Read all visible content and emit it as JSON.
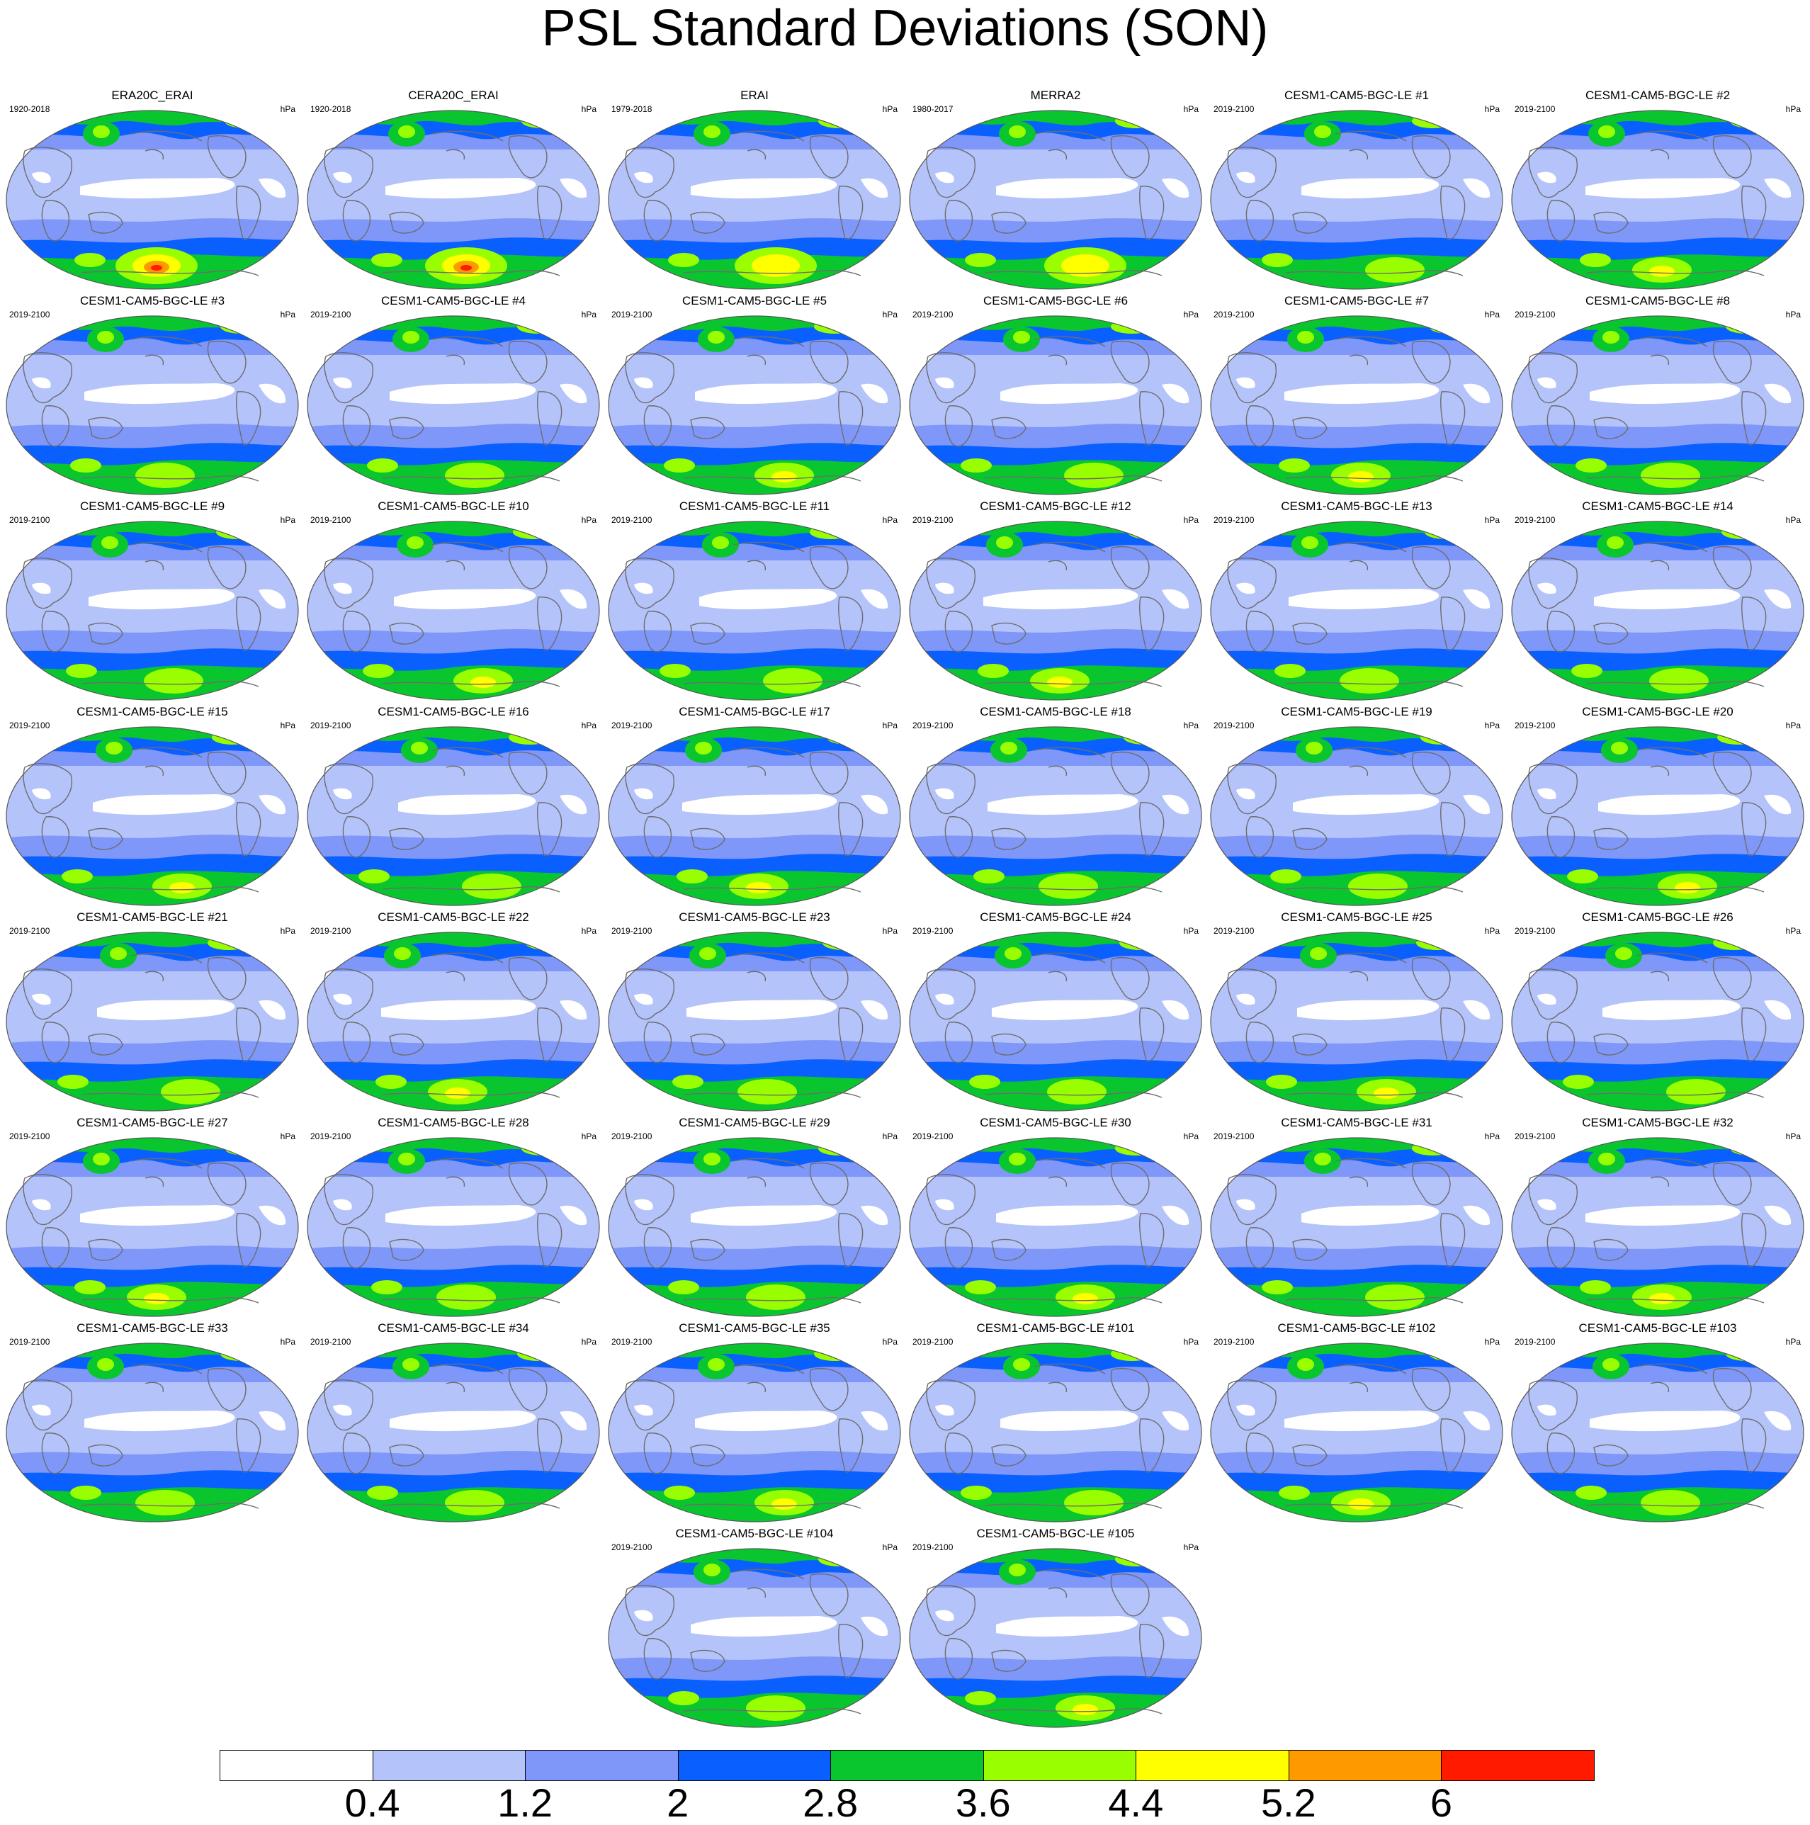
{
  "title": "PSL Standard Deviations (SON)",
  "panels": [
    {
      "title": "ERA20C_ERAI",
      "years": "1920-2018",
      "units": "hPa"
    },
    {
      "title": "CERA20C_ERAI",
      "years": "1920-2018",
      "units": "hPa"
    },
    {
      "title": "ERAI",
      "years": "1979-2018",
      "units": "hPa"
    },
    {
      "title": "MERRA2",
      "years": "1980-2017",
      "units": "hPa"
    },
    {
      "title": "CESM1-CAM5-BGC-LE #1",
      "years": "2019-2100",
      "units": "hPa"
    },
    {
      "title": "CESM1-CAM5-BGC-LE #2",
      "years": "2019-2100",
      "units": "hPa"
    },
    {
      "title": "CESM1-CAM5-BGC-LE #3",
      "years": "2019-2100",
      "units": "hPa"
    },
    {
      "title": "CESM1-CAM5-BGC-LE #4",
      "years": "2019-2100",
      "units": "hPa"
    },
    {
      "title": "CESM1-CAM5-BGC-LE #5",
      "years": "2019-2100",
      "units": "hPa"
    },
    {
      "title": "CESM1-CAM5-BGC-LE #6",
      "years": "2019-2100",
      "units": "hPa"
    },
    {
      "title": "CESM1-CAM5-BGC-LE #7",
      "years": "2019-2100",
      "units": "hPa"
    },
    {
      "title": "CESM1-CAM5-BGC-LE #8",
      "years": "2019-2100",
      "units": "hPa"
    },
    {
      "title": "CESM1-CAM5-BGC-LE #9",
      "years": "2019-2100",
      "units": "hPa"
    },
    {
      "title": "CESM1-CAM5-BGC-LE #10",
      "years": "2019-2100",
      "units": "hPa"
    },
    {
      "title": "CESM1-CAM5-BGC-LE #11",
      "years": "2019-2100",
      "units": "hPa"
    },
    {
      "title": "CESM1-CAM5-BGC-LE #12",
      "years": "2019-2100",
      "units": "hPa"
    },
    {
      "title": "CESM1-CAM5-BGC-LE #13",
      "years": "2019-2100",
      "units": "hPa"
    },
    {
      "title": "CESM1-CAM5-BGC-LE #14",
      "years": "2019-2100",
      "units": "hPa"
    },
    {
      "title": "CESM1-CAM5-BGC-LE #15",
      "years": "2019-2100",
      "units": "hPa"
    },
    {
      "title": "CESM1-CAM5-BGC-LE #16",
      "years": "2019-2100",
      "units": "hPa"
    },
    {
      "title": "CESM1-CAM5-BGC-LE #17",
      "years": "2019-2100",
      "units": "hPa"
    },
    {
      "title": "CESM1-CAM5-BGC-LE #18",
      "years": "2019-2100",
      "units": "hPa"
    },
    {
      "title": "CESM1-CAM5-BGC-LE #19",
      "years": "2019-2100",
      "units": "hPa"
    },
    {
      "title": "CESM1-CAM5-BGC-LE #20",
      "years": "2019-2100",
      "units": "hPa"
    },
    {
      "title": "CESM1-CAM5-BGC-LE #21",
      "years": "2019-2100",
      "units": "hPa"
    },
    {
      "title": "CESM1-CAM5-BGC-LE #22",
      "years": "2019-2100",
      "units": "hPa"
    },
    {
      "title": "CESM1-CAM5-BGC-LE #23",
      "years": "2019-2100",
      "units": "hPa"
    },
    {
      "title": "CESM1-CAM5-BGC-LE #24",
      "years": "2019-2100",
      "units": "hPa"
    },
    {
      "title": "CESM1-CAM5-BGC-LE #25",
      "years": "2019-2100",
      "units": "hPa"
    },
    {
      "title": "CESM1-CAM5-BGC-LE #26",
      "years": "2019-2100",
      "units": "hPa"
    },
    {
      "title": "CESM1-CAM5-BGC-LE #27",
      "years": "2019-2100",
      "units": "hPa"
    },
    {
      "title": "CESM1-CAM5-BGC-LE #28",
      "years": "2019-2100",
      "units": "hPa"
    },
    {
      "title": "CESM1-CAM5-BGC-LE #29",
      "years": "2019-2100",
      "units": "hPa"
    },
    {
      "title": "CESM1-CAM5-BGC-LE #30",
      "years": "2019-2100",
      "units": "hPa"
    },
    {
      "title": "CESM1-CAM5-BGC-LE #31",
      "years": "2019-2100",
      "units": "hPa"
    },
    {
      "title": "CESM1-CAM5-BGC-LE #32",
      "years": "2019-2100",
      "units": "hPa"
    },
    {
      "title": "CESM1-CAM5-BGC-LE #33",
      "years": "2019-2100",
      "units": "hPa"
    },
    {
      "title": "CESM1-CAM5-BGC-LE #34",
      "years": "2019-2100",
      "units": "hPa"
    },
    {
      "title": "CESM1-CAM5-BGC-LE #35",
      "years": "2019-2100",
      "units": "hPa"
    },
    {
      "title": "CESM1-CAM5-BGC-LE #101",
      "years": "2019-2100",
      "units": "hPa"
    },
    {
      "title": "CESM1-CAM5-BGC-LE #102",
      "years": "2019-2100",
      "units": "hPa"
    },
    {
      "title": "CESM1-CAM5-BGC-LE #103",
      "years": "2019-2100",
      "units": "hPa"
    },
    {
      "title": "CESM1-CAM5-BGC-LE #104",
      "years": "2019-2100",
      "units": "hPa"
    },
    {
      "title": "CESM1-CAM5-BGC-LE #105",
      "years": "2019-2100",
      "units": "hPa"
    }
  ],
  "colorbar": {
    "labels": [
      "0.4",
      "1.2",
      "2",
      "2.8",
      "3.6",
      "4.4",
      "5.2",
      "6"
    ],
    "colors": [
      "#ffffff",
      "#b4c3fa",
      "#7f97f8",
      "#0a60ff",
      "#09c62e",
      "#99ff00",
      "#ffff00",
      "#ff9900",
      "#ff1a00"
    ]
  }
}
